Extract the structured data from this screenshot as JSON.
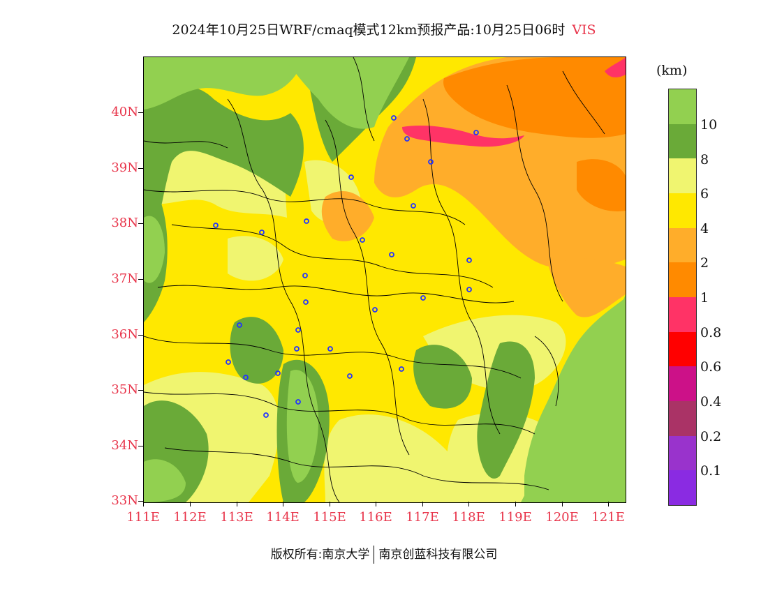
{
  "title": {
    "main": "2024年10月25日WRF/cmaq模式12km预报产品:10月25日06时",
    "variable": "VIS"
  },
  "axes": {
    "lat_labels": [
      "40N",
      "39N",
      "38N",
      "37N",
      "36N",
      "35N",
      "34N",
      "33N"
    ],
    "lon_labels": [
      "111E",
      "112E",
      "113E",
      "114E",
      "115E",
      "116E",
      "117E",
      "118E",
      "119E",
      "120E",
      "121E"
    ]
  },
  "legend": {
    "unit": "(km)",
    "colors": [
      "#92d050",
      "#6aaa38",
      "#f0f570",
      "#ffe800",
      "#ffad2a",
      "#ff8a00",
      "#ff3366",
      "#ff0000",
      "#cc1188",
      "#aa3366",
      "#9933cc",
      "#8a2be2"
    ],
    "labels": [
      "10",
      "8",
      "6",
      "4",
      "2",
      "1",
      "0.8",
      "0.6",
      "0.4",
      "0.2",
      "0.1"
    ]
  },
  "footer": {
    "left": "版权所有:南京大学",
    "right": "南京创蓝科技有限公司"
  }
}
